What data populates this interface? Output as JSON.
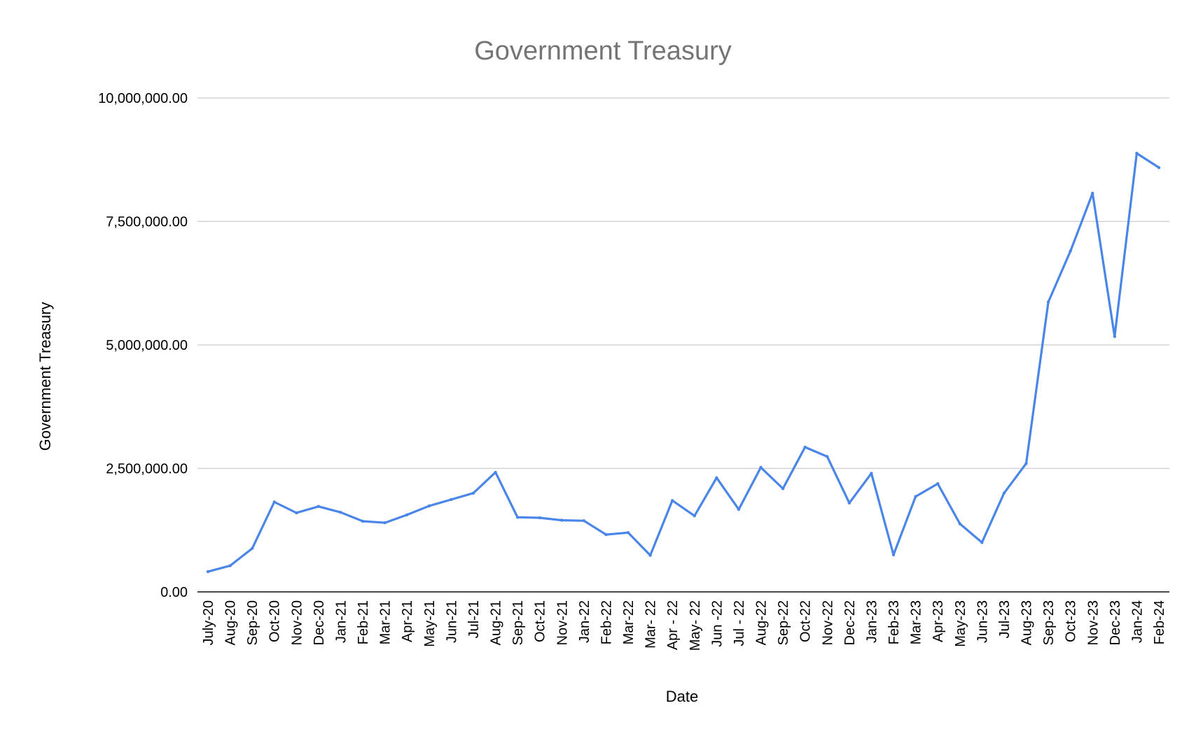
{
  "chart_data": {
    "type": "line",
    "title": "Government Treasury",
    "xlabel": "Date",
    "ylabel": "Government Treasury",
    "ylim": [
      0,
      10000000
    ],
    "y_ticks": [
      "0.00",
      "2,500,000.00",
      "5,000,000.00",
      "7,500,000.00",
      "10,000,000.00"
    ],
    "y_tick_values": [
      0,
      2500000,
      5000000,
      7500000,
      10000000
    ],
    "grid": true,
    "legend": "none",
    "line_color": "#4a86e8",
    "categories": [
      "July-20",
      "Aug-20",
      "Sep-20",
      "Oct-20",
      "Nov-20",
      "Dec-20",
      "Jan-21",
      "Feb-21",
      "Mar-21",
      "Apr-21",
      "May-21",
      "Jun-21",
      "Jul-21",
      "Aug-21",
      "Sep-21",
      "Oct-21",
      "Nov-21",
      "Jan-22",
      "Feb-22",
      "Mar-22",
      "Mar- 22",
      "Apr - 22",
      "May- 22",
      "Jun -22",
      "Jul - 22",
      "Aug-22",
      "Sep-22",
      "Oct-22",
      "Nov-22",
      "Dec-22",
      "Jan-23",
      "Feb-23",
      "Mar-23",
      "Apr-23",
      "May-23",
      "Jun-23",
      "Jul-23",
      "Aug-23",
      "Sep-23",
      "Oct-23",
      "Nov-23",
      "Dec-23",
      "Jan-24",
      "Feb-24"
    ],
    "series": [
      {
        "values": [
          410000,
          530000,
          880000,
          1820000,
          1600000,
          1730000,
          1610000,
          1430000,
          1400000,
          1560000,
          1740000,
          1870000,
          2000000,
          2420000,
          1510000,
          1500000,
          1450000,
          1440000,
          1160000,
          1200000,
          740000,
          1850000,
          1540000,
          2310000,
          1670000,
          2520000,
          2090000,
          2930000,
          2740000,
          1800000,
          2400000,
          750000,
          1930000,
          2190000,
          1380000,
          1000000,
          2000000,
          2600000,
          5870000,
          6900000,
          8070000,
          5170000,
          8880000,
          8590000
        ]
      }
    ]
  }
}
